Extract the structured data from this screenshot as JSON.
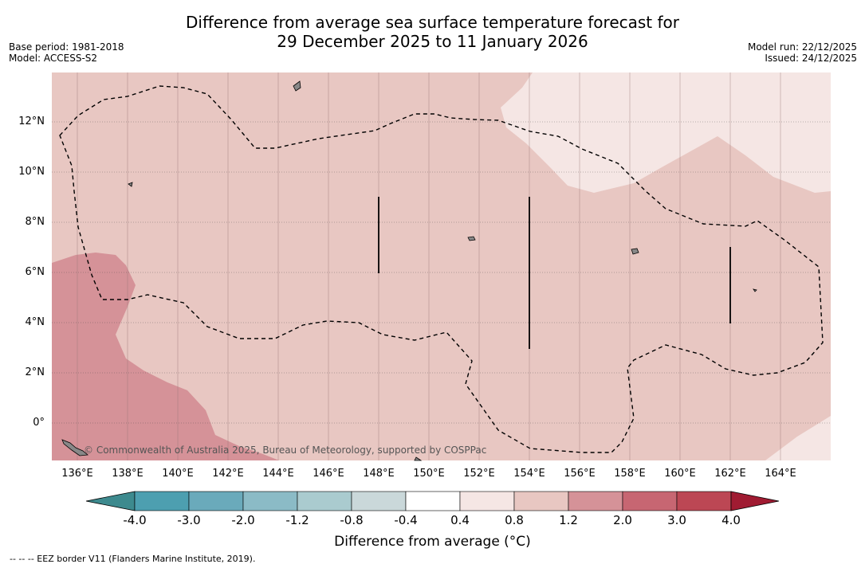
{
  "title": {
    "line1": "Difference from average sea surface temperature forecast for",
    "line2": "29 December 2025 to 11 January 2026"
  },
  "meta_left": {
    "base_period": "Base period: 1981-2018",
    "model": "Model: ACCESS-S2"
  },
  "meta_right": {
    "model_run": "Model run: 22/12/2025",
    "issued": "Issued: 24/12/2025"
  },
  "map": {
    "longitude_labels": [
      "136°E",
      "138°E",
      "140°E",
      "142°E",
      "144°E",
      "146°E",
      "148°E",
      "150°E",
      "152°E",
      "154°E",
      "156°E",
      "158°E",
      "160°E",
      "162°E",
      "164°E"
    ],
    "latitude_labels": [
      "12°N",
      "10°N",
      "8°N",
      "6°N",
      "4°N",
      "2°N",
      "0°"
    ],
    "lon_range": [
      135.0,
      166.0
    ],
    "lat_range": [
      -1.5,
      13.8
    ],
    "attribution": "© Commonwealth of Australia 2025, Bureau of Meteorology, supported by COSPPac"
  },
  "colorbar": {
    "title": "Difference from average (°C)",
    "tick_labels": [
      "-4.0",
      "-3.0",
      "-2.0",
      "-1.2",
      "-0.8",
      "-0.4",
      "0.4",
      "0.8",
      "1.2",
      "2.0",
      "3.0",
      "4.0"
    ],
    "colors": [
      "#4d9fb0",
      "#6aaabb",
      "#8bbbc6",
      "#aacbcf",
      "#cad8da",
      "#ffffff",
      "#f5e6e4",
      "#e8c7c2",
      "#d59298",
      "#c76672",
      "#bc4754"
    ],
    "extend_low_color": "#3d8a8e",
    "extend_high_color": "#a01b32"
  },
  "footnote": "--  --  -- EEZ border V11 (Flanders Marine Institute, 2019)."
}
